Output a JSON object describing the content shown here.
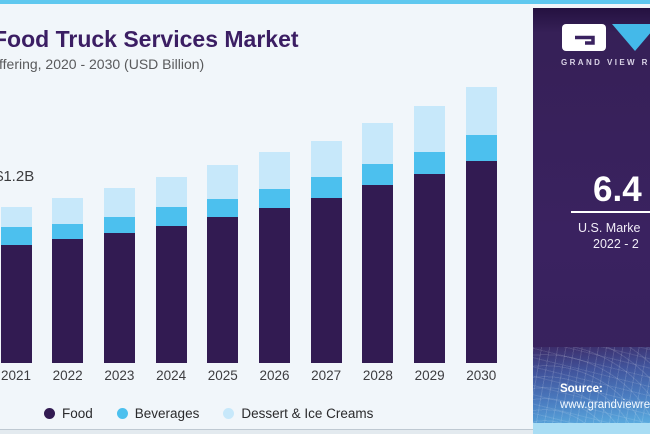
{
  "header": {
    "title": "Food Truck Services Market",
    "subtitle": "ffering, 2020 - 2030 (USD Billion)"
  },
  "annotation": {
    "first_bar_value_label": "$1.2B"
  },
  "chart_data": {
    "type": "bar",
    "stacked": true,
    "title": "Food Truck Services Market",
    "subtitle_visible": "ffering, 2020 - 2030 (USD Billion)",
    "unit": "USD Billion",
    "categories": [
      "2021",
      "2022",
      "2023",
      "2024",
      "2025",
      "2026",
      "2027",
      "2028",
      "2029",
      "2030"
    ],
    "series": [
      {
        "name": "Food",
        "color": "#321b52",
        "values": [
          0.91,
          0.95,
          1.0,
          1.05,
          1.12,
          1.19,
          1.27,
          1.37,
          1.45,
          1.55
        ]
      },
      {
        "name": "Beverages",
        "color": "#4cc0ee",
        "values": [
          0.14,
          0.12,
          0.12,
          0.15,
          0.14,
          0.15,
          0.16,
          0.16,
          0.17,
          0.2
        ]
      },
      {
        "name": "Dessert & Ice Creams",
        "color": "#c7e8fa",
        "values": [
          0.15,
          0.2,
          0.23,
          0.23,
          0.26,
          0.28,
          0.28,
          0.32,
          0.36,
          0.37
        ]
      }
    ],
    "totals": [
      1.2,
      1.27,
      1.35,
      1.43,
      1.52,
      1.62,
      1.71,
      1.85,
      1.98,
      2.12
    ],
    "annotations": [
      {
        "category": "2021",
        "text": "$1.2B"
      }
    ],
    "ylim": [
      0,
      2.5
    ],
    "grid": false,
    "y_axis_visible": false,
    "legend_position": "bottom"
  },
  "panel": {
    "brand_name": "GRAND VIEW R",
    "stat_value": "6.4",
    "stat_caption_line1": "U.S. Marke",
    "stat_caption_line2": "2022 - 2",
    "source_label": "Source:",
    "source_url": "www.grandviewre",
    "colors": {
      "panel_background": "#3a2260",
      "accent_blue": "#44b9e9",
      "top_strip": "#5fc8ef"
    }
  }
}
